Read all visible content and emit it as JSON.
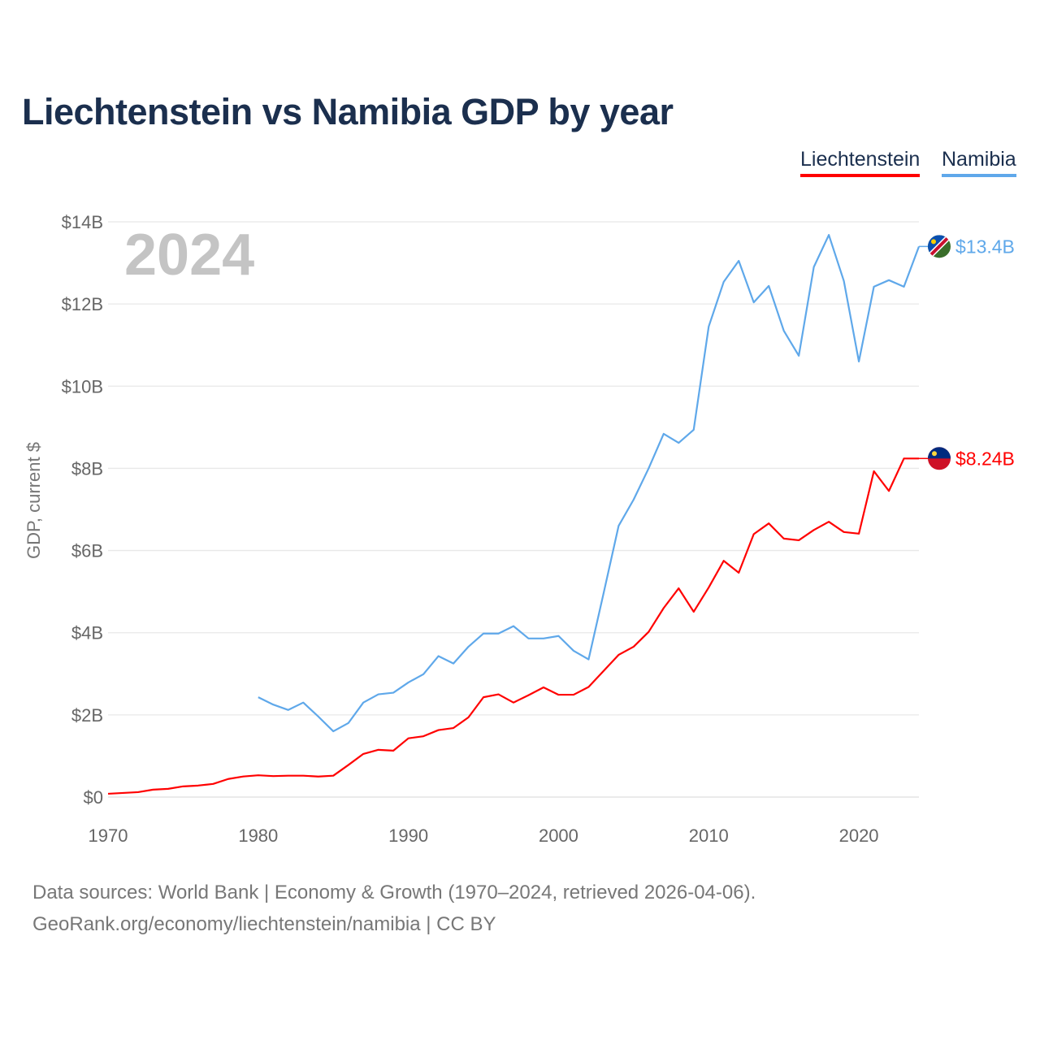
{
  "title": "Liechtenstein vs Namibia GDP by year",
  "legend": [
    "Liechtenstein",
    "Namibia"
  ],
  "year_watermark": "2024",
  "footer": {
    "line1": "Data sources: World Bank | Economy & Growth (1970–2024, retrieved 2026-04-06).",
    "line2": "GeoRank.org/economy/liechtenstein/namibia | CC BY"
  },
  "colors": {
    "liechtenstein": "#ff0000",
    "namibia": "#5fa8ea"
  },
  "chart_data": {
    "type": "line",
    "title": "Liechtenstein vs Namibia GDP by year",
    "xlabel": "",
    "ylabel": "GDP, current $",
    "xlim": [
      1970,
      2024
    ],
    "ylim": [
      0,
      14
    ],
    "x_ticks": [
      1970,
      1980,
      1990,
      2000,
      2010,
      2020
    ],
    "y_ticks": [
      0,
      2,
      4,
      6,
      8,
      10,
      12,
      14
    ],
    "y_tick_labels": [
      "$0",
      "$2B",
      "$4B",
      "$6B",
      "$8B",
      "$10B",
      "$12B",
      "$14B"
    ],
    "grid": true,
    "legend_position": "top-right",
    "series": [
      {
        "name": "Liechtenstein",
        "color": "#ff0000",
        "end_label": "$8.24B",
        "start_year": 1970,
        "values": [
          0.08,
          0.1,
          0.12,
          0.18,
          0.2,
          0.26,
          0.28,
          0.32,
          0.44,
          0.5,
          0.53,
          0.51,
          0.52,
          0.52,
          0.5,
          0.52,
          0.78,
          1.05,
          1.15,
          1.13,
          1.43,
          1.48,
          1.63,
          1.68,
          1.94,
          2.43,
          2.5,
          2.3,
          2.48,
          2.67,
          2.49,
          2.49,
          2.68,
          3.07,
          3.46,
          3.66,
          4.02,
          4.6,
          5.08,
          4.51,
          5.1,
          5.75,
          5.46,
          6.4,
          6.66,
          6.29,
          6.25,
          6.5,
          6.7,
          6.45,
          6.41,
          7.93,
          7.45,
          8.24,
          8.24
        ]
      },
      {
        "name": "Namibia",
        "color": "#5fa8ea",
        "end_label": "$13.4B",
        "start_year": 1980,
        "values": [
          2.43,
          2.25,
          2.12,
          2.3,
          1.96,
          1.6,
          1.8,
          2.3,
          2.5,
          2.54,
          2.79,
          2.99,
          3.43,
          3.25,
          3.66,
          3.98,
          3.98,
          4.16,
          3.86,
          3.86,
          3.92,
          3.56,
          3.35,
          4.96,
          6.6,
          7.24,
          8.0,
          8.84,
          8.62,
          8.94,
          11.45,
          12.54,
          13.05,
          12.04,
          12.44,
          11.35,
          10.74,
          12.9,
          13.68,
          12.56,
          10.6,
          12.42,
          12.58,
          12.42,
          13.4
        ]
      }
    ]
  }
}
